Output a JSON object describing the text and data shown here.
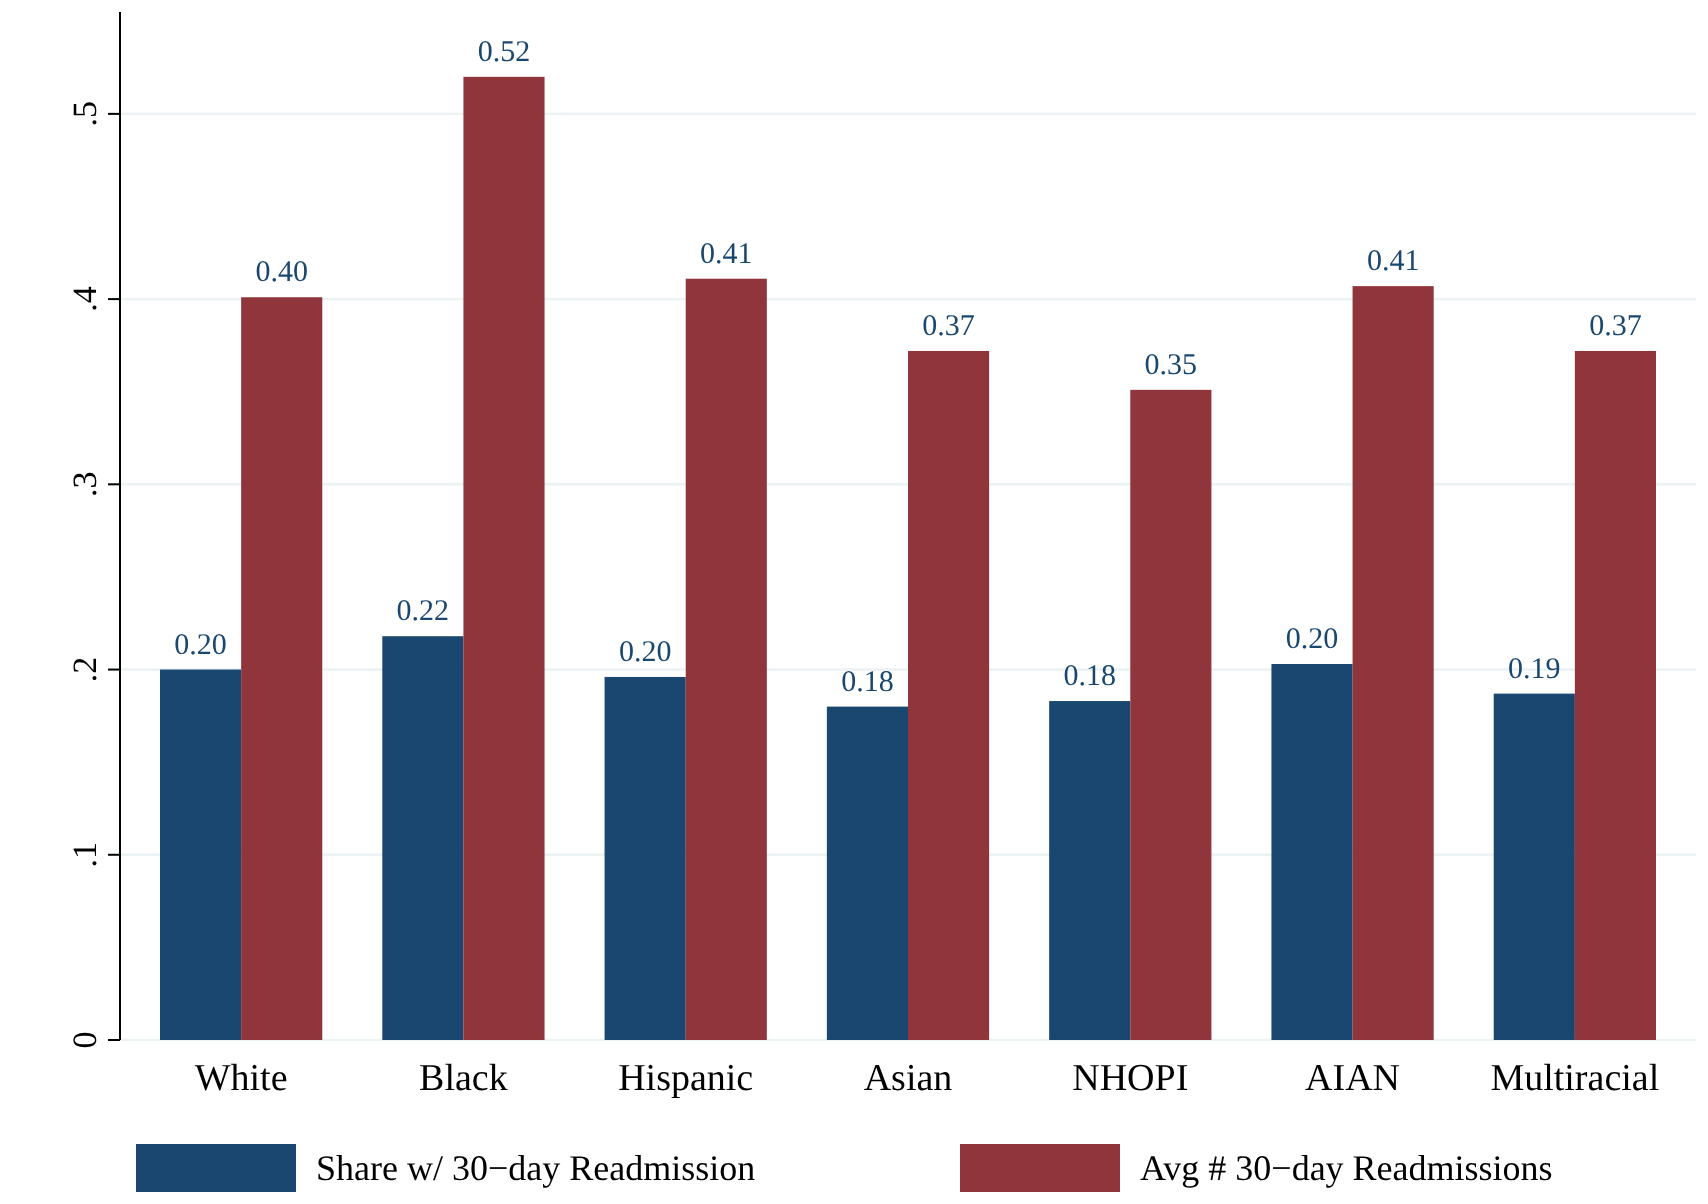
{
  "chart_data": {
    "type": "bar",
    "categories": [
      "White",
      "Black",
      "Hispanic",
      "Asian",
      "NHOPI",
      "AIAN",
      "Multiracial"
    ],
    "series": [
      {
        "name": "Share w/ 30−day Readmission",
        "color": "#1a476f",
        "values": [
          0.2,
          0.218,
          0.196,
          0.18,
          0.183,
          0.203,
          0.187
        ],
        "value_labels": [
          "0.20",
          "0.22",
          "0.20",
          "0.18",
          "0.18",
          "0.20",
          "0.19"
        ]
      },
      {
        "name": "Avg # 30−day Readmissions",
        "color": "#90353b",
        "values": [
          0.401,
          0.52,
          0.411,
          0.372,
          0.351,
          0.407,
          0.372
        ],
        "value_labels": [
          "0.40",
          "0.52",
          "0.41",
          "0.37",
          "0.35",
          "0.41",
          "0.37"
        ]
      }
    ],
    "ylim": [
      0,
      0.555
    ],
    "yticks": [
      {
        "value": 0,
        "label": "0"
      },
      {
        "value": 0.1,
        "label": ".1"
      },
      {
        "value": 0.2,
        "label": ".2"
      },
      {
        "value": 0.3,
        "label": ".3"
      },
      {
        "value": 0.4,
        "label": ".4"
      },
      {
        "value": 0.5,
        "label": ".5"
      }
    ],
    "grid": "y",
    "legend": "bottom"
  }
}
